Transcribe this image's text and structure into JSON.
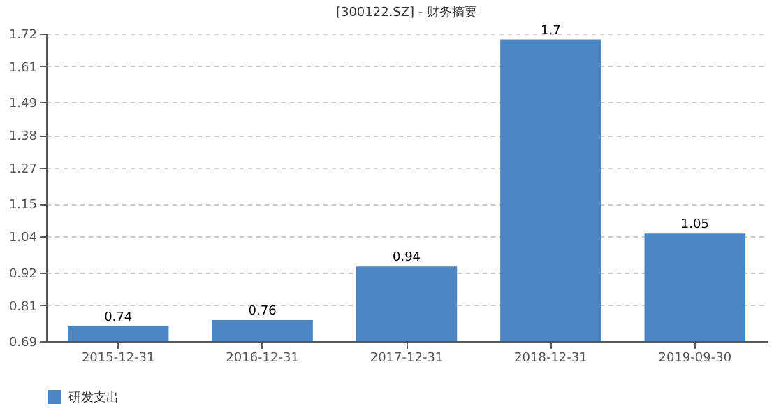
{
  "chart_data": {
    "type": "bar",
    "title": "[300122.SZ] - 财务摘要",
    "categories": [
      "2015-12-31",
      "2016-12-31",
      "2017-12-31",
      "2018-12-31",
      "2019-09-30"
    ],
    "series": [
      {
        "name": "研发支出",
        "color": "#4a86c4",
        "values": [
          0.74,
          0.76,
          0.94,
          1.7,
          1.05
        ]
      }
    ],
    "ylim": [
      0.69,
      1.72
    ],
    "yticks": [
      0.69,
      0.81,
      0.92,
      1.04,
      1.15,
      1.27,
      1.38,
      1.49,
      1.61,
      1.72
    ],
    "grid": "y",
    "legend": "bottom",
    "data_labels": true
  }
}
